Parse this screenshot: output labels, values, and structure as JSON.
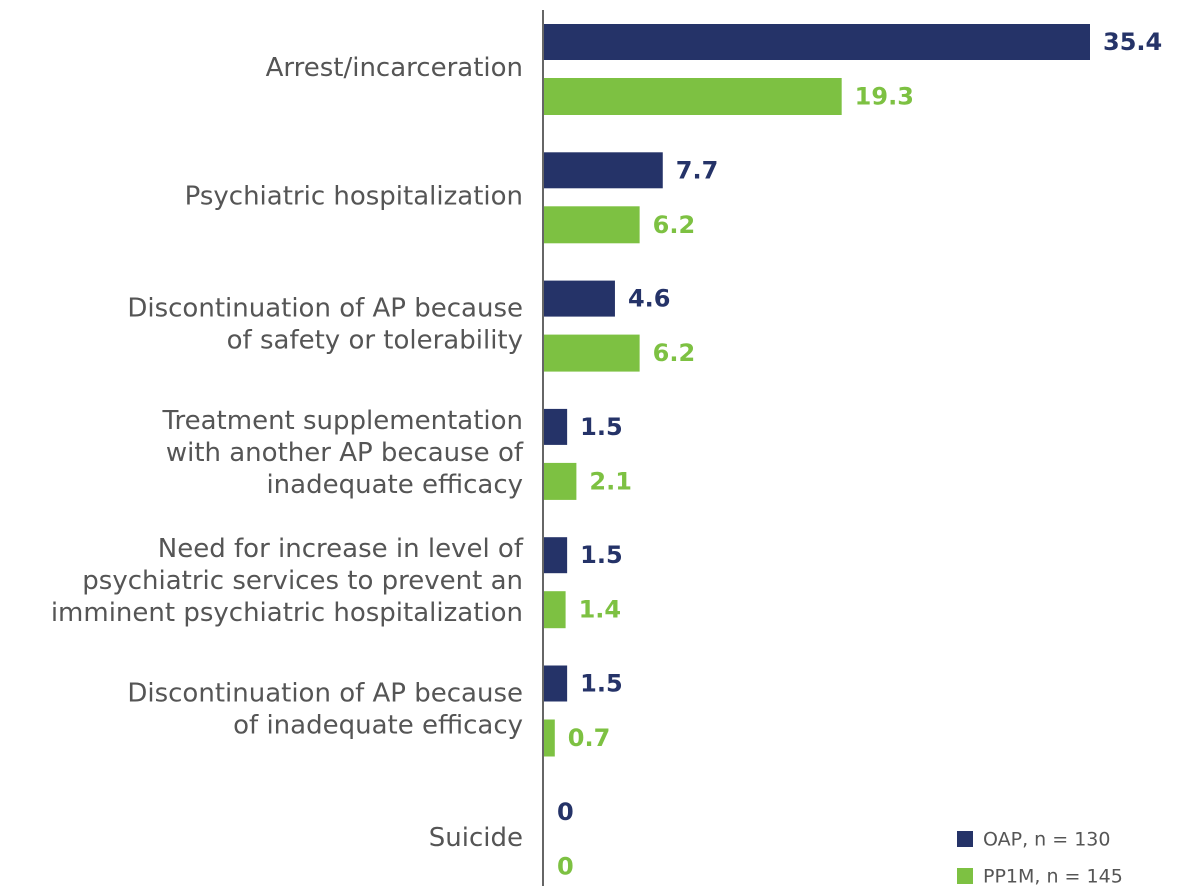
{
  "chart_data": {
    "type": "bar",
    "orientation": "horizontal",
    "categories": [
      "Arrest/incarceration",
      "Psychiatric hospitalization",
      "Discontinuation of AP because\nof safety or tolerability",
      "Treatment supplementation\nwith another AP because of\ninadequate efficacy",
      "Need for increase in level of\npsychiatric services to prevent an\nimminent psychiatric hospitalization",
      "Discontinuation of AP because\nof inadequate efficacy",
      "Suicide"
    ],
    "series": [
      {
        "name": "OAP, n = 130",
        "color": "#253368",
        "values": [
          35.4,
          7.7,
          4.6,
          1.5,
          1.5,
          1.5,
          0
        ]
      },
      {
        "name": "PP1M, n = 145",
        "color": "#7dc142",
        "values": [
          19.3,
          6.2,
          6.2,
          2.1,
          1.4,
          0.7,
          0
        ]
      }
    ],
    "legend": "lower right"
  }
}
